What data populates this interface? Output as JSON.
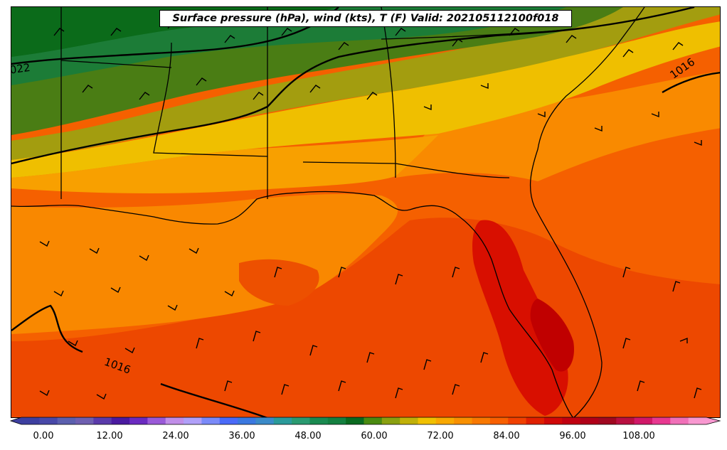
{
  "title": "Surface pressure (hPa), wind (kts), T (F) Valid: 202105112100f018",
  "isobar_labels": [
    {
      "text": "1016",
      "id": "isobar-label-1016-east"
    },
    {
      "text": "1016",
      "id": "isobar-label-1016-south"
    },
    {
      "text": "022",
      "id": "isobar-label-1022"
    }
  ],
  "colorbar": {
    "tick_labels": [
      "0.00",
      "12.00",
      "24.00",
      "36.00",
      "48.00",
      "60.00",
      "72.00",
      "84.00",
      "96.00",
      "108.00"
    ],
    "colors": [
      "#3d3fa0",
      "#4848a8",
      "#5b5fae",
      "#6e5fb0",
      "#5a3aaa",
      "#4a1aa0",
      "#6a2ac0",
      "#9a5ad8",
      "#c08ee8",
      "#b0a0f8",
      "#7a8af8",
      "#4a6af8",
      "#3a78e0",
      "#3a8ac8",
      "#2a9a9a",
      "#2a9a70",
      "#1a8a50",
      "#148040",
      "#0a6a20",
      "#4a8a10",
      "#8aa010",
      "#c0b008",
      "#f0c000",
      "#f8a800",
      "#f89000",
      "#f87800",
      "#f86000",
      "#f04000",
      "#e02000",
      "#d00808",
      "#c00010",
      "#b00018",
      "#a00820",
      "#b81040",
      "#d01868",
      "#e83890",
      "#f070b8",
      "#f898d0"
    ]
  },
  "legend_colors": {
    "green_dark": "#0b6b1a",
    "green": "#1c7c37",
    "olive": "#4a7d14",
    "olive_light": "#a39d0f",
    "yellow": "#efbf00",
    "orange_light": "#f8a000",
    "orange": "#f98800",
    "orange_deep": "#f56000",
    "red_orange": "#ed4000",
    "red": "#d80f00",
    "dark_red": "#c00000"
  }
}
